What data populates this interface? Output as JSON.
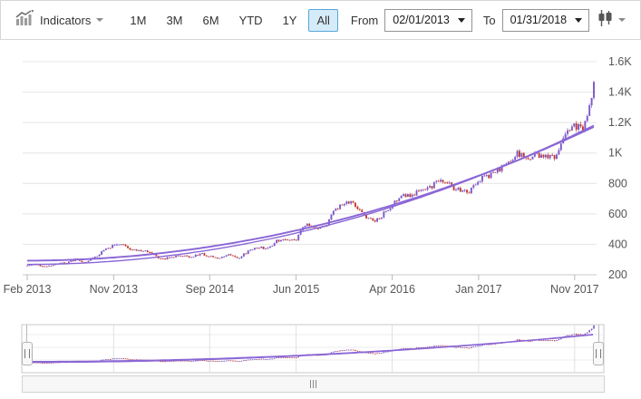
{
  "toolbar": {
    "indicators_label": "Indicators",
    "indicators_icon": "chart-indicators-icon",
    "ranges": [
      "1M",
      "3M",
      "6M",
      "YTD",
      "1Y",
      "All"
    ],
    "selected_range": "All",
    "from_label": "From",
    "from_value": "02/01/2013",
    "to_label": "To",
    "to_value": "01/31/2018",
    "series_type_icon": "candlestick-icon",
    "selected_range_bg": "#d6ebf8",
    "selected_range_border": "#54a7d9"
  },
  "chart_data": {
    "type": "candlestick",
    "period": "weekly",
    "x_ticks": [
      {
        "label": "Feb 2013",
        "month": 0
      },
      {
        "label": "Nov 2013",
        "month": 9
      },
      {
        "label": "Sep 2014",
        "month": 19
      },
      {
        "label": "Jun 2015",
        "month": 28
      },
      {
        "label": "Apr 2016",
        "month": 38
      },
      {
        "label": "Jan 2017",
        "month": 47
      },
      {
        "label": "Nov 2017",
        "month": 57
      }
    ],
    "y_ticks": [
      {
        "label": "200",
        "v": 200
      },
      {
        "label": "400",
        "v": 400
      },
      {
        "label": "600",
        "v": 600
      },
      {
        "label": "800",
        "v": 800
      },
      {
        "label": "1K",
        "v": 1000
      },
      {
        "label": "1.2K",
        "v": 1200
      },
      {
        "label": "1.4K",
        "v": 1400
      },
      {
        "label": "1.6K",
        "v": 1600
      }
    ],
    "y_range": [
      200,
      1600
    ],
    "start_month": "Feb 2013",
    "end_month": "Jan 2018",
    "monthly_closes": [
      265,
      266,
      254,
      269,
      277,
      301,
      280,
      313,
      364,
      393,
      399,
      358,
      362,
      336,
      304,
      312,
      324,
      312,
      339,
      322,
      305,
      339,
      310,
      354,
      380,
      372,
      422,
      429,
      434,
      536,
      513,
      511,
      625,
      664,
      676,
      587,
      553,
      593,
      660,
      723,
      716,
      759,
      769,
      837,
      789,
      750,
      750,
      823,
      845,
      886,
      925,
      995,
      968,
      988,
      980,
      962,
      1105,
      1176,
      1169,
      1450
    ],
    "trendlines": [
      {
        "kind": "quadratic",
        "start": 293,
        "coef": 0.00225
      },
      {
        "kind": "quadratic",
        "start": 268,
        "coef": 0.00234
      }
    ],
    "colors": {
      "up": "#7b57c8",
      "down": "#c4392f",
      "trend": "#8a66d6",
      "grid": "#e4e4e4",
      "axis_line": "#c9c9c9",
      "axis_text": "#555555"
    }
  },
  "navigator": {
    "left_handle_icon": "range-start-grip-icon",
    "right_handle_icon": "range-end-grip-icon",
    "scrollbar_icon": "scrollbar-grip-icon"
  }
}
